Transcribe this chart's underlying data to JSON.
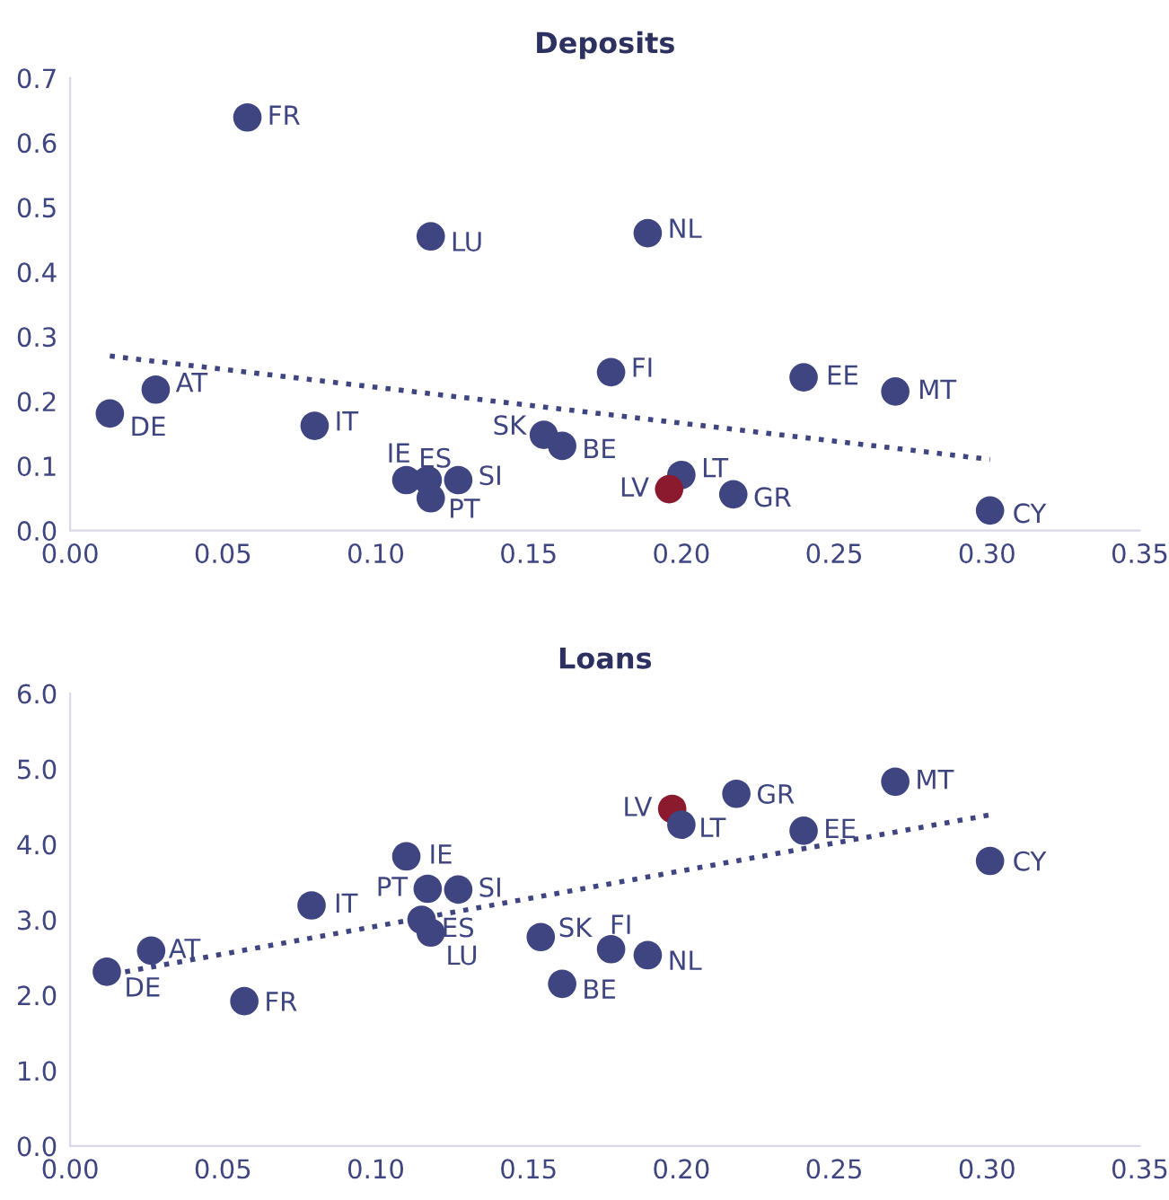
{
  "chart_data": [
    {
      "type": "scatter",
      "title": "Deposits",
      "grid": false,
      "xlim": [
        0,
        0.35
      ],
      "ylim": [
        0,
        0.7
      ],
      "xticks": [
        {
          "value": 0,
          "label": "0.00"
        },
        {
          "value": 0.05,
          "label": "0.05"
        },
        {
          "value": 0.1,
          "label": "0.10"
        },
        {
          "value": 0.15,
          "label": "0.15"
        },
        {
          "value": 0.2,
          "label": "0.20"
        },
        {
          "value": 0.25,
          "label": "0.25"
        },
        {
          "value": 0.3,
          "label": "0.30"
        },
        {
          "value": 0.35,
          "label": "0.35"
        }
      ],
      "yticks": [
        {
          "value": 0,
          "label": "0.0"
        },
        0.1,
        0.2,
        0.3,
        0.4,
        0.5,
        0.6,
        0.7
      ],
      "series": [
        {
          "marker": "circle",
          "x": [
            0.058,
            0.118,
            0.189,
            0.177,
            0.24,
            0.27,
            0.028,
            0.013,
            0.08,
            0.155,
            0.161,
            0.11,
            0.117,
            0.127,
            0.118,
            0.2,
            0.196,
            0.217,
            0.301
          ],
          "values": [
            0.639,
            0.455,
            0.46,
            0.245,
            0.237,
            0.215,
            0.218,
            0.181,
            0.162,
            0.148,
            0.131,
            0.078,
            0.078,
            0.078,
            0.05,
            0.086,
            0.064,
            0.056,
            0.031
          ],
          "colors": [
            "#3f4580",
            "#3f4580",
            "#3f4580",
            "#3f4580",
            "#3f4580",
            "#3f4580",
            "#3f4580",
            "#3f4580",
            "#3f4580",
            "#3f4580",
            "#3f4580",
            "#3f4580",
            "#3f4580",
            "#3f4580",
            "#3f4580",
            "#3f4580",
            "#8b1a2f",
            "#3f4580",
            "#3f4580"
          ]
        },
        {
          "type": "line",
          "x": [
            0.013,
            0.301
          ],
          "values": [
            0.27,
            0.11
          ],
          "color": "#3f4580",
          "line_style": "dotted"
        }
      ],
      "annotations": [
        {
          "text": "FR",
          "x": 0.058,
          "y": 0.639
        },
        {
          "text": "LU",
          "x": 0.118,
          "y": 0.455
        },
        {
          "text": "NL",
          "x": 0.189,
          "y": 0.46
        },
        {
          "text": "FI",
          "x": 0.177,
          "y": 0.245
        },
        {
          "text": "EE",
          "x": 0.24,
          "y": 0.237
        },
        {
          "text": "MT",
          "x": 0.27,
          "y": 0.215
        },
        {
          "text": "AT",
          "x": 0.028,
          "y": 0.218
        },
        {
          "text": "DE",
          "x": 0.013,
          "y": 0.181
        },
        {
          "text": "IT",
          "x": 0.08,
          "y": 0.162
        },
        {
          "text": "SK",
          "x": 0.155,
          "y": 0.148
        },
        {
          "text": "BE",
          "x": 0.161,
          "y": 0.131
        },
        {
          "text": "IE",
          "x": 0.11,
          "y": 0.078
        },
        {
          "text": "ES",
          "x": 0.117,
          "y": 0.078
        },
        {
          "text": "SI",
          "x": 0.127,
          "y": 0.078
        },
        {
          "text": "PT",
          "x": 0.118,
          "y": 0.05
        },
        {
          "text": "LT",
          "x": 0.2,
          "y": 0.086
        },
        {
          "text": "LV",
          "x": 0.196,
          "y": 0.064
        },
        {
          "text": "GR",
          "x": 0.217,
          "y": 0.056
        },
        {
          "text": "CY",
          "x": 0.301,
          "y": 0.031
        }
      ]
    },
    {
      "type": "scatter",
      "title": "Loans",
      "grid": false,
      "xlim": [
        0,
        0.35
      ],
      "ylim": [
        0,
        6
      ],
      "xticks": [
        {
          "value": 0,
          "label": "0.00"
        },
        {
          "value": 0.05,
          "label": "0.05"
        },
        {
          "value": 0.1,
          "label": "0.10"
        },
        {
          "value": 0.15,
          "label": "0.15"
        },
        {
          "value": 0.2,
          "label": "0.20"
        },
        {
          "value": 0.25,
          "label": "0.25"
        },
        {
          "value": 0.3,
          "label": "0.30"
        },
        {
          "value": 0.35,
          "label": "0.35"
        }
      ],
      "yticks": [
        {
          "value": 0,
          "label": "0.0"
        },
        {
          "value": 1,
          "label": "1.0"
        },
        {
          "value": 2,
          "label": "2.0"
        },
        {
          "value": 3,
          "label": "3.0"
        },
        {
          "value": 4,
          "label": "4.0"
        },
        {
          "value": 5,
          "label": "5.0"
        },
        {
          "value": 6,
          "label": "6.0"
        }
      ],
      "series": [
        {
          "marker": "circle",
          "x": [
            0.012,
            0.0265,
            0.057,
            0.079,
            0.11,
            0.117,
            0.127,
            0.115,
            0.118,
            0.154,
            0.161,
            0.177,
            0.189,
            0.197,
            0.2,
            0.218,
            0.24,
            0.27,
            0.301
          ],
          "values": [
            2.31,
            2.59,
            1.92,
            3.19,
            3.84,
            3.41,
            3.4,
            3.0,
            2.83,
            2.77,
            2.15,
            2.61,
            2.53,
            4.47,
            4.26,
            4.67,
            4.18,
            4.83,
            3.78
          ],
          "colors": [
            "#3f4580",
            "#3f4580",
            "#3f4580",
            "#3f4580",
            "#3f4580",
            "#3f4580",
            "#3f4580",
            "#3f4580",
            "#3f4580",
            "#3f4580",
            "#3f4580",
            "#3f4580",
            "#3f4580",
            "#8b1a2f",
            "#3f4580",
            "#3f4580",
            "#3f4580",
            "#3f4580",
            "#3f4580"
          ]
        },
        {
          "type": "line",
          "x": [
            0.018,
            0.301
          ],
          "values": [
            2.31,
            4.39
          ],
          "color": "#3f4580",
          "line_style": "dotted"
        }
      ],
      "annotations": [
        {
          "text": "DE",
          "x": 0.012,
          "y": 2.31
        },
        {
          "text": "AT",
          "x": 0.0265,
          "y": 2.59
        },
        {
          "text": "FR",
          "x": 0.057,
          "y": 1.92
        },
        {
          "text": "IT",
          "x": 0.079,
          "y": 3.19
        },
        {
          "text": "IE",
          "x": 0.11,
          "y": 3.84
        },
        {
          "text": "PT",
          "x": 0.117,
          "y": 3.41
        },
        {
          "text": "SI",
          "x": 0.127,
          "y": 3.4
        },
        {
          "text": "ES",
          "x": 0.115,
          "y": 3.0
        },
        {
          "text": "LU",
          "x": 0.118,
          "y": 2.83
        },
        {
          "text": "SK",
          "x": 0.154,
          "y": 2.77
        },
        {
          "text": "BE",
          "x": 0.161,
          "y": 2.15
        },
        {
          "text": "FI",
          "x": 0.177,
          "y": 2.61
        },
        {
          "text": "NL",
          "x": 0.189,
          "y": 2.53
        },
        {
          "text": "LV",
          "x": 0.197,
          "y": 4.47
        },
        {
          "text": "LT",
          "x": 0.2,
          "y": 4.26
        },
        {
          "text": "GR",
          "x": 0.218,
          "y": 4.67
        },
        {
          "text": "EE",
          "x": 0.24,
          "y": 4.18
        },
        {
          "text": "MT",
          "x": 0.27,
          "y": 4.83
        },
        {
          "text": "CY",
          "x": 0.301,
          "y": 3.78
        }
      ]
    }
  ]
}
